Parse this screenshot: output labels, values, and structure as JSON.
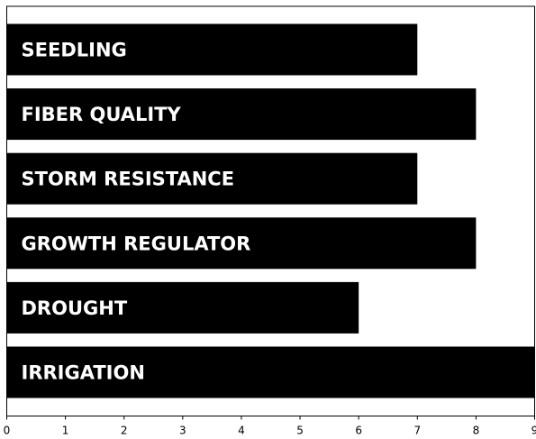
{
  "chart_data": {
    "type": "bar",
    "orientation": "horizontal",
    "categories": [
      "SEEDLING",
      "FIBER QUALITY",
      "STORM RESISTANCE",
      "GROWTH REGULATOR",
      "DROUGHT",
      "IRRIGATION"
    ],
    "values": [
      7,
      8,
      7,
      8,
      6,
      9
    ],
    "xlim": [
      0,
      9
    ],
    "xticks": [
      0,
      1,
      2,
      3,
      4,
      5,
      6,
      7,
      8,
      9
    ],
    "title": "",
    "xlabel": "",
    "ylabel": "",
    "grid": false,
    "legend": "none",
    "colors": {
      "bar": "#000000",
      "label_text": "#ffffff",
      "axis": "#000000",
      "background": "#ffffff"
    }
  }
}
